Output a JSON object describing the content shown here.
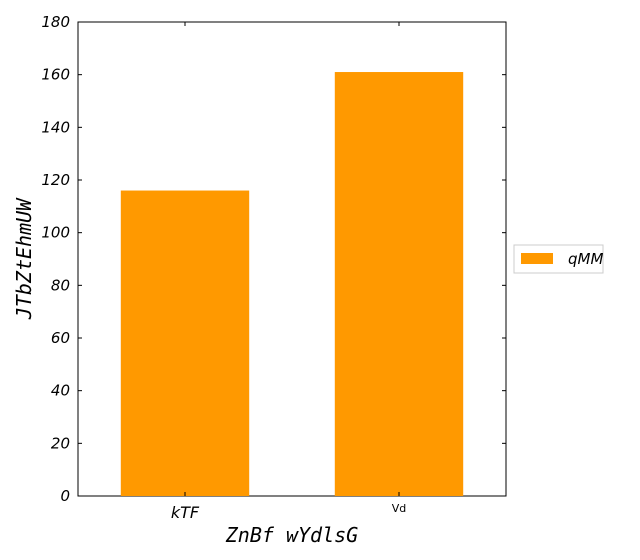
{
  "chart_data": {
    "type": "bar",
    "categories": [
      "kTF",
      "Vd"
    ],
    "series": [
      {
        "name": "qMM",
        "values": [
          116,
          161
        ],
        "color": "#ff9900"
      }
    ],
    "xlabel": "ZnBf wYdlsG",
    "ylabel": "JTbZtEhmUW",
    "ylim": [
      0,
      180
    ],
    "yticks": [
      0,
      20,
      40,
      60,
      80,
      100,
      120,
      140,
      160,
      180
    ],
    "grid": false,
    "legend_position": "right"
  }
}
